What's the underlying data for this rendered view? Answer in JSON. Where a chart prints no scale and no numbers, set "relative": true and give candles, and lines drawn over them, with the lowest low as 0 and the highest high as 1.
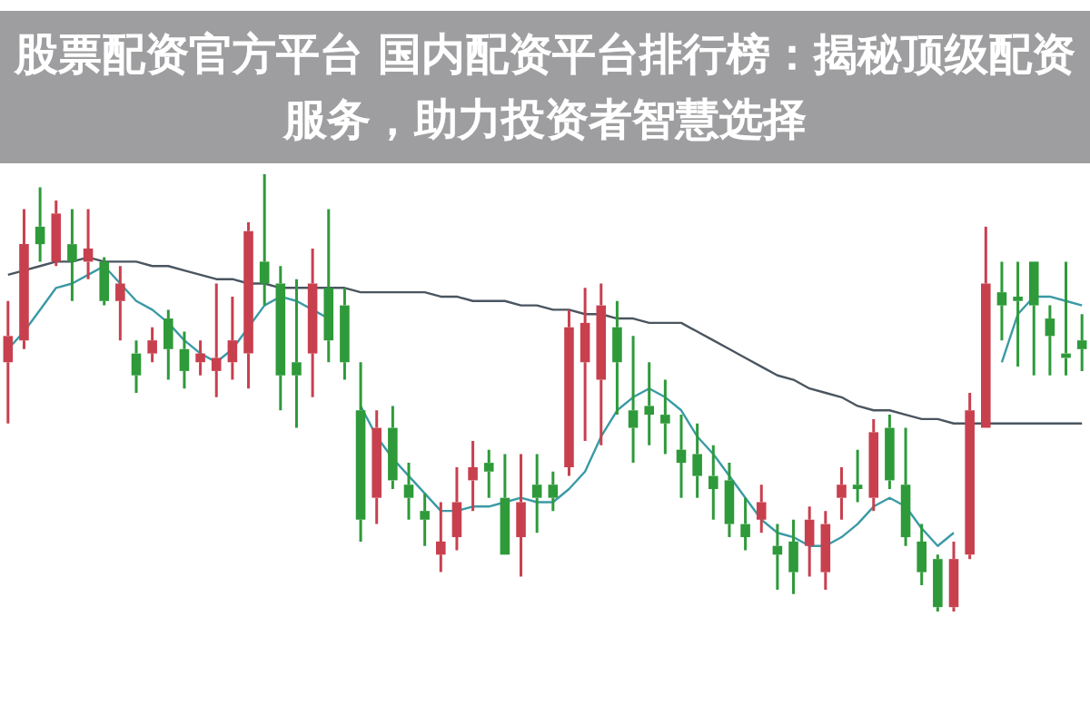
{
  "chart_data": {
    "type": "candlestick",
    "title": "股票配资官方平台 国内配资平台排行榜：揭秘顶级配资服务，助力投资者智慧选择",
    "relative": true,
    "categories": [
      null,
      null,
      null,
      null,
      null,
      null,
      null,
      null,
      null,
      null,
      null,
      null,
      null,
      null,
      null,
      null,
      null,
      null,
      null,
      null,
      null,
      null,
      null,
      null,
      null,
      null,
      null,
      null,
      null,
      null,
      null,
      null,
      null,
      null,
      null,
      null,
      null,
      null,
      null,
      null,
      null,
      null,
      null,
      null,
      null,
      null,
      null,
      null,
      null,
      null,
      null,
      null,
      null,
      null,
      null,
      null,
      null,
      null,
      null,
      null,
      null,
      null,
      null,
      null,
      null,
      null,
      null,
      null
    ],
    "ohlc": [
      [
        0.57,
        0.71,
        0.43,
        0.63
      ],
      [
        0.62,
        0.92,
        0.6,
        0.84
      ],
      [
        0.88,
        0.97,
        0.8,
        0.84
      ],
      [
        0.8,
        0.94,
        0.79,
        0.91
      ],
      [
        0.84,
        0.92,
        0.71,
        0.8
      ],
      [
        0.8,
        0.92,
        0.76,
        0.83
      ],
      [
        0.8,
        0.81,
        0.7,
        0.71
      ],
      [
        0.71,
        0.79,
        0.62,
        0.75
      ],
      [
        0.59,
        0.62,
        0.5,
        0.54
      ],
      [
        0.59,
        0.65,
        0.57,
        0.62
      ],
      [
        0.67,
        0.69,
        0.53,
        0.6
      ],
      [
        0.6,
        0.64,
        0.51,
        0.55
      ],
      [
        0.57,
        0.62,
        0.54,
        0.59
      ],
      [
        0.55,
        0.75,
        0.49,
        0.58
      ],
      [
        0.57,
        0.72,
        0.53,
        0.62
      ],
      [
        0.59,
        0.89,
        0.51,
        0.87
      ],
      [
        0.8,
        1,
        0.7,
        0.75
      ],
      [
        0.75,
        0.79,
        0.46,
        0.54
      ],
      [
        0.57,
        0.76,
        0.42,
        0.54
      ],
      [
        0.59,
        0.83,
        0.49,
        0.75
      ],
      [
        0.74,
        0.92,
        0.57,
        0.62
      ],
      [
        0.7,
        0.74,
        0.53,
        0.57
      ],
      [
        0.46,
        0.57,
        0.16,
        0.21
      ],
      [
        0.26,
        0.46,
        0.2,
        0.42
      ],
      [
        0.42,
        0.47,
        0.28,
        0.3
      ],
      [
        0.29,
        0.34,
        0.21,
        0.26
      ],
      [
        0.23,
        0.27,
        0.15,
        0.21
      ],
      [
        0.13,
        0.25,
        0.09,
        0.16
      ],
      [
        0.17,
        0.33,
        0.14,
        0.25
      ],
      [
        0.3,
        0.39,
        0.23,
        0.33
      ],
      [
        0.34,
        0.37,
        0.26,
        0.32
      ],
      [
        0.26,
        0.36,
        0.13,
        0.13
      ],
      [
        0.17,
        0.36,
        0.08,
        0.25
      ],
      [
        0.29,
        0.36,
        0.18,
        0.26
      ],
      [
        0.29,
        0.32,
        0.23,
        0.26
      ],
      [
        0.33,
        0.69,
        0.31,
        0.65
      ],
      [
        0.57,
        0.74,
        0.39,
        0.66
      ],
      [
        0.53,
        0.75,
        0.38,
        0.7
      ],
      [
        0.65,
        0.71,
        0.45,
        0.57
      ],
      [
        0.46,
        0.63,
        0.34,
        0.42
      ],
      [
        0.47,
        0.57,
        0.38,
        0.45
      ],
      [
        0.45,
        0.53,
        0.36,
        0.43
      ],
      [
        0.37,
        0.45,
        0.26,
        0.34
      ],
      [
        0.36,
        0.43,
        0.26,
        0.31
      ],
      [
        0.31,
        0.38,
        0.21,
        0.28
      ],
      [
        0.3,
        0.34,
        0.17,
        0.2
      ],
      [
        0.2,
        0.26,
        0.14,
        0.17
      ],
      [
        0.21,
        0.29,
        0.18,
        0.25
      ],
      [
        0.15,
        0.2,
        0.05,
        0.13
      ],
      [
        0.16,
        0.21,
        0.04,
        0.09
      ],
      [
        0.15,
        0.24,
        0.08,
        0.21
      ],
      [
        0.09,
        0.23,
        0.05,
        0.2
      ],
      [
        0.26,
        0.33,
        0.21,
        0.29
      ],
      [
        0.29,
        0.37,
        0.25,
        0.28
      ],
      [
        0.26,
        0.44,
        0.23,
        0.41
      ],
      [
        0.42,
        0.45,
        0.28,
        0.3
      ],
      [
        0.29,
        0.42,
        0.15,
        0.17
      ],
      [
        0.16,
        0.2,
        0.06,
        0.09
      ],
      [
        0.12,
        0.13,
        0,
        0.01
      ],
      [
        0.01,
        0.16,
        0,
        0.12
      ],
      [
        0.13,
        0.5,
        0.12,
        0.46
      ],
      [
        0.42,
        0.88,
        0.42,
        0.75
      ],
      [
        0.73,
        0.8,
        0.62,
        0.7
      ],
      [
        0.72,
        0.8,
        0.56,
        0.71
      ],
      [
        0.8,
        0.8,
        0.54,
        0.7
      ],
      [
        0.67,
        0.7,
        0.54,
        0.63
      ],
      [
        0.59,
        0.8,
        0.54,
        0.58
      ],
      [
        0.62,
        0.68,
        0.55,
        0.6
      ]
    ],
    "colors": [
      "#c8404e",
      "#c8404e",
      "#2e9a3a",
      "#c8404e",
      "#2e9a3a",
      "#c8404e",
      "#2e9a3a",
      "#c8404e",
      "#2e9a3a",
      "#c8404e",
      "#2e9a3a",
      "#2e9a3a",
      "#c8404e",
      "#c8404e",
      "#c8404e",
      "#c8404e",
      "#2e9a3a",
      "#2e9a3a",
      "#2e9a3a",
      "#c8404e",
      "#2e9a3a",
      "#2e9a3a",
      "#2e9a3a",
      "#c8404e",
      "#2e9a3a",
      "#2e9a3a",
      "#2e9a3a",
      "#c8404e",
      "#c8404e",
      "#c8404e",
      "#2e9a3a",
      "#2e9a3a",
      "#c8404e",
      "#2e9a3a",
      "#2e9a3a",
      "#c8404e",
      "#c8404e",
      "#c8404e",
      "#2e9a3a",
      "#2e9a3a",
      "#2e9a3a",
      "#2e9a3a",
      "#2e9a3a",
      "#2e9a3a",
      "#2e9a3a",
      "#2e9a3a",
      "#2e9a3a",
      "#c8404e",
      "#2e9a3a",
      "#2e9a3a",
      "#c8404e",
      "#c8404e",
      "#c8404e",
      "#2e9a3a",
      "#c8404e",
      "#2e9a3a",
      "#2e9a3a",
      "#2e9a3a",
      "#2e9a3a",
      "#c8404e",
      "#c8404e",
      "#c8404e",
      "#2e9a3a",
      "#2e9a3a",
      "#2e9a3a",
      "#2e9a3a",
      "#2e9a3a",
      "#2e9a3a"
    ],
    "series": [
      {
        "type": "line",
        "color": "#3a9aa5",
        "values": [
          0.6,
          0.64,
          0.69,
          0.74,
          0.75,
          0.77,
          0.79,
          0.75,
          0.71,
          0.69,
          0.66,
          0.62,
          0.59,
          0.57,
          0.6,
          0.65,
          0.7,
          0.72,
          0.71,
          0.69,
          0.67,
          null,
          0.47,
          0.4,
          0.35,
          0.31,
          0.27,
          0.23,
          0.23,
          0.24,
          0.24,
          0.25,
          0.26,
          0.25,
          0.25,
          0.28,
          0.32,
          0.4,
          0.46,
          0.49,
          0.51,
          0.49,
          0.46,
          0.4,
          0.36,
          0.31,
          0.26,
          0.21,
          0.18,
          0.17,
          0.15,
          0.15,
          0.17,
          0.2,
          0.24,
          0.26,
          0.24,
          0.19,
          0.15,
          0.18,
          null,
          null,
          0.57,
          0.68,
          0.72,
          0.72,
          0.71,
          0.7
        ]
      },
      {
        "type": "line",
        "color": "#4a5560",
        "values": [
          0.77,
          0.78,
          0.79,
          0.8,
          0.8,
          0.81,
          0.8,
          0.8,
          0.8,
          0.79,
          0.79,
          0.78,
          0.77,
          0.76,
          0.76,
          0.75,
          0.75,
          0.74,
          0.74,
          0.74,
          0.74,
          0.74,
          0.73,
          0.73,
          0.73,
          0.73,
          0.73,
          0.72,
          0.72,
          0.71,
          0.71,
          0.71,
          0.7,
          0.7,
          0.69,
          0.69,
          0.68,
          0.68,
          0.67,
          0.67,
          0.66,
          0.66,
          0.66,
          0.64,
          0.62,
          0.6,
          0.58,
          0.56,
          0.54,
          0.53,
          0.51,
          0.5,
          0.49,
          0.47,
          0.46,
          0.46,
          0.45,
          0.44,
          0.44,
          0.43,
          0.43,
          0.43,
          0.43,
          0.43,
          0.43,
          0.43,
          0.43,
          0.43
        ]
      }
    ]
  }
}
